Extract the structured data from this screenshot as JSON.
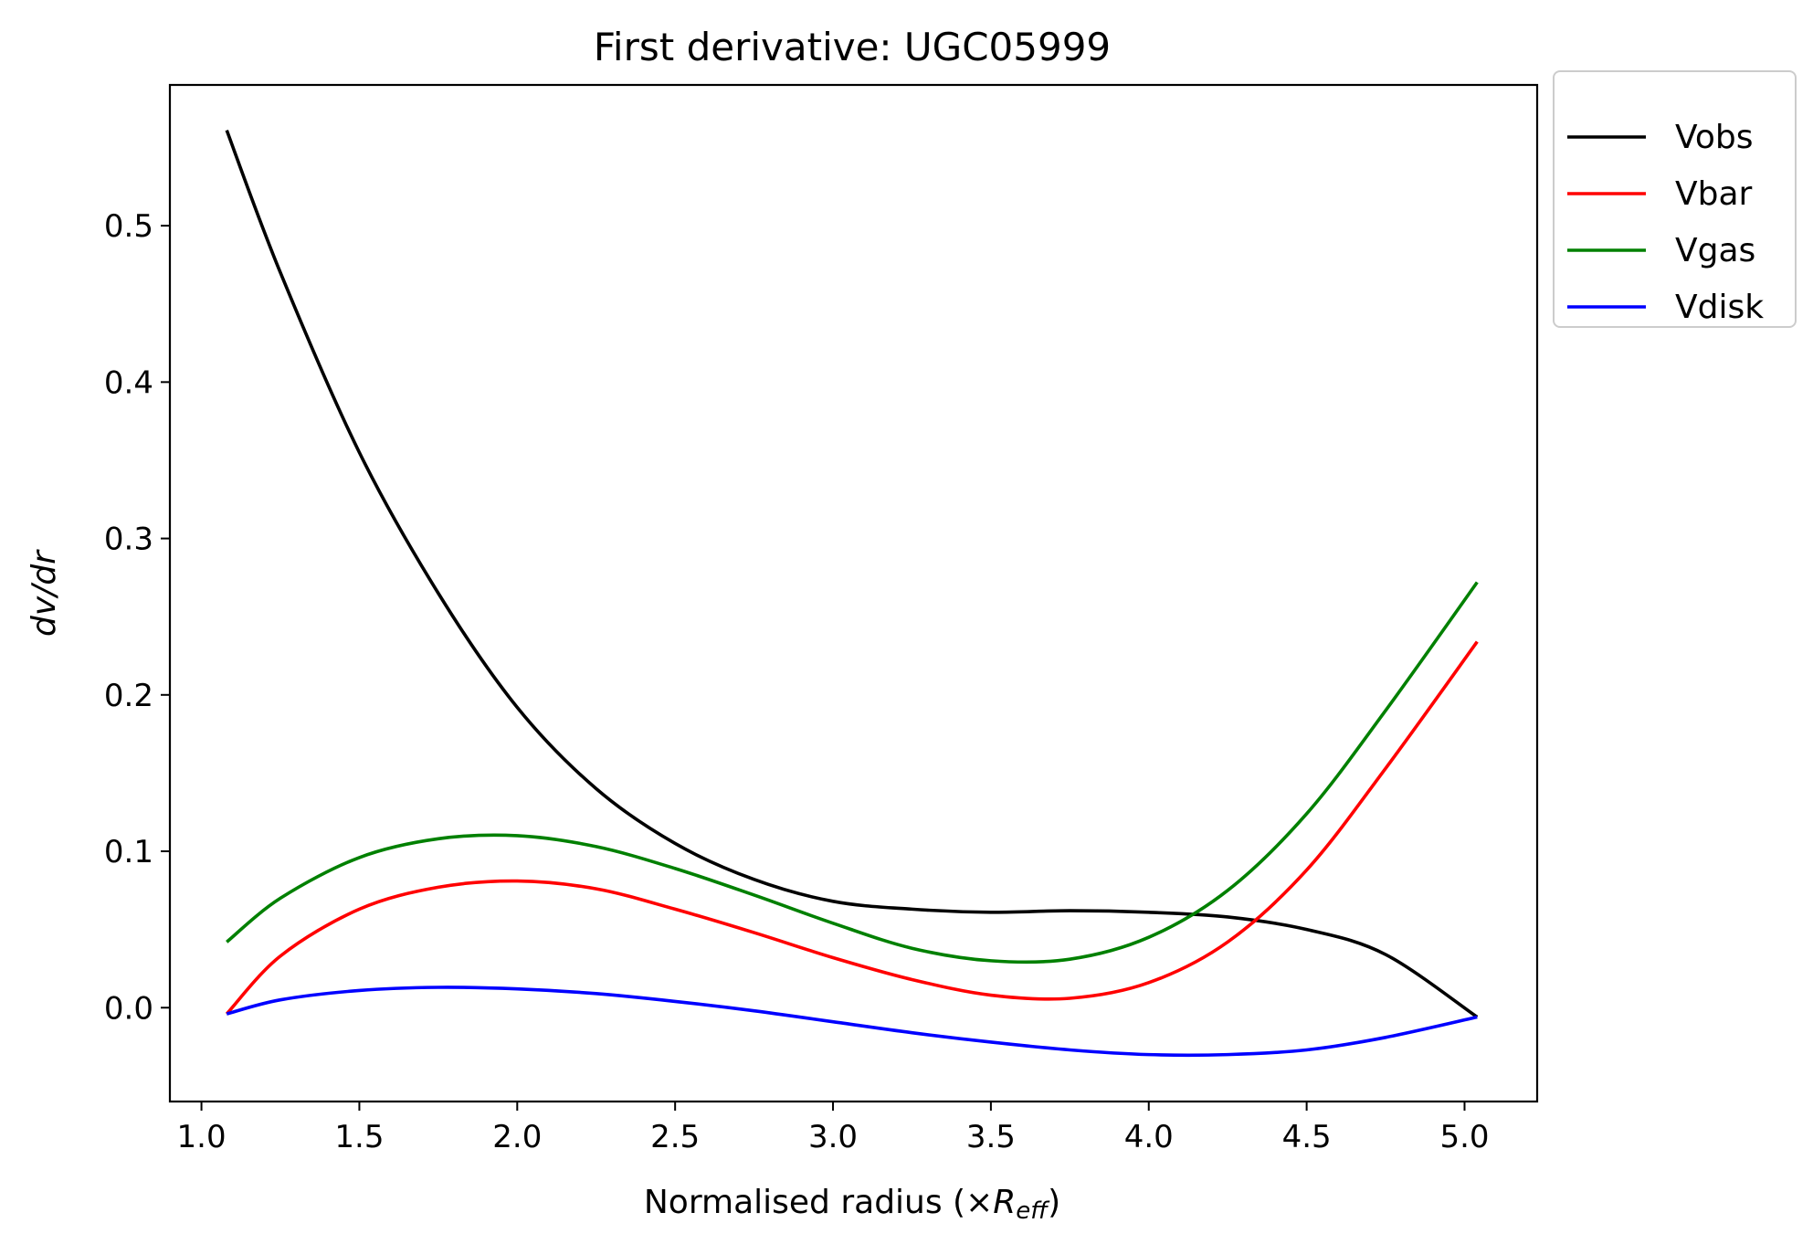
{
  "chart_data": {
    "type": "line",
    "title": "First derivative: UGC05999",
    "xlabel_main": "Normalised radius (×",
    "xlabel_var": "R",
    "xlabel_sub": "eff",
    "xlabel_close": ")",
    "ylabel": "dv/dr",
    "xlim": [
      0.9,
      5.23
    ],
    "ylim": [
      -0.06,
      0.59
    ],
    "xticks": [
      1.0,
      1.5,
      2.0,
      2.5,
      3.0,
      3.5,
      4.0,
      4.5,
      5.0
    ],
    "xtick_labels": [
      "1.0",
      "1.5",
      "2.0",
      "2.5",
      "3.0",
      "3.5",
      "4.0",
      "4.5",
      "5.0"
    ],
    "yticks": [
      0.0,
      0.1,
      0.2,
      0.3,
      0.4,
      0.5
    ],
    "ytick_labels": [
      "0.0",
      "0.1",
      "0.2",
      "0.3",
      "0.4",
      "0.5"
    ],
    "grid": false,
    "legend_position": "outside-top-right",
    "series": [
      {
        "name": "Vobs",
        "color": "#000000",
        "x": [
          1.08,
          1.25,
          1.5,
          1.75,
          2.0,
          2.25,
          2.5,
          2.75,
          3.0,
          3.25,
          3.5,
          3.75,
          4.0,
          4.25,
          4.5,
          4.75,
          5.04
        ],
        "y": [
          0.561,
          0.47,
          0.355,
          0.265,
          0.192,
          0.14,
          0.105,
          0.082,
          0.068,
          0.063,
          0.061,
          0.062,
          0.061,
          0.058,
          0.05,
          0.034,
          -0.006
        ]
      },
      {
        "name": "Vbar",
        "color": "#ff0000",
        "x": [
          1.08,
          1.25,
          1.5,
          1.75,
          2.0,
          2.25,
          2.5,
          2.75,
          3.0,
          3.25,
          3.5,
          3.75,
          4.0,
          4.25,
          4.5,
          4.75,
          5.04
        ],
        "y": [
          -0.004,
          0.033,
          0.063,
          0.077,
          0.081,
          0.076,
          0.063,
          0.048,
          0.032,
          0.018,
          0.008,
          0.006,
          0.016,
          0.042,
          0.088,
          0.153,
          0.234
        ]
      },
      {
        "name": "Vgas",
        "color": "#008000",
        "x": [
          1.08,
          1.25,
          1.5,
          1.75,
          2.0,
          2.25,
          2.5,
          2.75,
          3.0,
          3.25,
          3.5,
          3.75,
          4.0,
          4.25,
          4.5,
          4.75,
          5.04
        ],
        "y": [
          0.042,
          0.07,
          0.096,
          0.108,
          0.11,
          0.103,
          0.089,
          0.072,
          0.054,
          0.038,
          0.03,
          0.031,
          0.045,
          0.075,
          0.124,
          0.19,
          0.272
        ]
      },
      {
        "name": "Vdisk",
        "color": "#0000ff",
        "x": [
          1.08,
          1.25,
          1.5,
          1.75,
          2.0,
          2.25,
          2.5,
          2.75,
          3.0,
          3.25,
          3.5,
          3.75,
          4.0,
          4.25,
          4.5,
          4.75,
          5.04
        ],
        "y": [
          -0.004,
          0.005,
          0.011,
          0.013,
          0.012,
          0.009,
          0.004,
          -0.002,
          -0.009,
          -0.016,
          -0.022,
          -0.027,
          -0.03,
          -0.03,
          -0.027,
          -0.019,
          -0.006
        ]
      }
    ]
  }
}
